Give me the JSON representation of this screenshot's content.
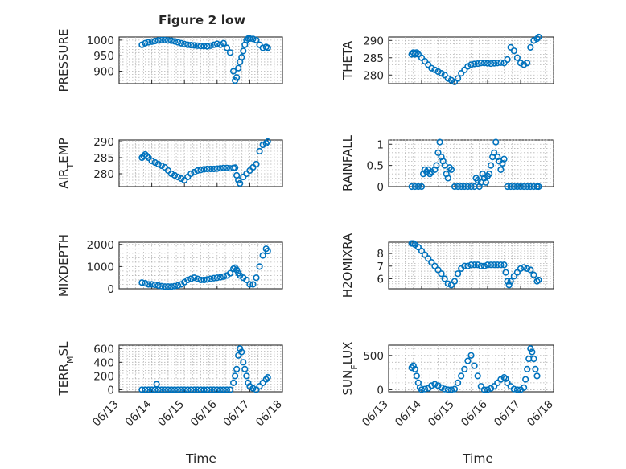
{
  "figure": {
    "title": "Figure 2 low",
    "xlabel": "Time",
    "xticklabels": [
      "06/13",
      "06/14",
      "06/15",
      "06/16",
      "06/17",
      "06/18"
    ]
  },
  "chart_data": [
    {
      "type": "scatter",
      "name": "pressure",
      "ylabel": "PRESSURE",
      "ylabel_sub": "",
      "xlim": [
        0,
        5
      ],
      "ylim": [
        860,
        1010
      ],
      "yticks": [
        900,
        950,
        1000
      ],
      "grid": true,
      "minor_grid": true,
      "x": [
        0.7,
        0.8,
        0.9,
        1.0,
        1.1,
        1.2,
        1.3,
        1.4,
        1.5,
        1.6,
        1.7,
        1.8,
        1.9,
        2.0,
        2.1,
        2.2,
        2.3,
        2.4,
        2.5,
        2.6,
        2.7,
        2.8,
        2.9,
        3.0,
        3.1,
        3.2,
        3.3,
        3.4,
        3.5,
        3.55,
        3.6,
        3.65,
        3.7,
        3.75,
        3.8,
        3.85,
        3.9,
        3.95,
        4.0,
        4.1,
        4.2,
        4.3,
        4.4,
        4.5,
        4.55
      ],
      "y": [
        985,
        990,
        993,
        995,
        997,
        999,
        1000,
        1000,
        999,
        998,
        996,
        993,
        990,
        987,
        985,
        984,
        983,
        982,
        981,
        981,
        980,
        982,
        985,
        988,
        985,
        990,
        975,
        960,
        900,
        870,
        880,
        910,
        930,
        945,
        965,
        985,
        1000,
        1005,
        1005,
        1004,
        1000,
        985,
        975,
        978,
        975
      ]
    },
    {
      "type": "scatter",
      "name": "theta",
      "ylabel": "THETA",
      "ylabel_sub": "",
      "xlim": [
        0,
        5
      ],
      "ylim": [
        277.5,
        291
      ],
      "yticks": [
        280,
        285,
        290
      ],
      "grid": true,
      "minor_grid": true,
      "x": [
        0.7,
        0.75,
        0.8,
        0.85,
        0.9,
        1.0,
        1.1,
        1.2,
        1.3,
        1.4,
        1.5,
        1.6,
        1.7,
        1.8,
        1.9,
        2.0,
        2.1,
        2.2,
        2.3,
        2.4,
        2.5,
        2.6,
        2.7,
        2.8,
        2.9,
        3.0,
        3.1,
        3.2,
        3.3,
        3.4,
        3.5,
        3.6,
        3.7,
        3.8,
        3.9,
        4.0,
        4.1,
        4.2,
        4.3,
        4.4,
        4.5,
        4.55
      ],
      "y": [
        286,
        286.5,
        286,
        286.5,
        286,
        285,
        284,
        283,
        282,
        281.5,
        281,
        280.5,
        280,
        279,
        278.5,
        278,
        279,
        280.5,
        281.5,
        282.5,
        283,
        283.2,
        283.3,
        283.5,
        283.5,
        283.4,
        283.3,
        283.4,
        283.5,
        283.6,
        283.5,
        284.5,
        288,
        287,
        285,
        283.5,
        283,
        283.5,
        288,
        290,
        290.5,
        291
      ]
    },
    {
      "type": "scatter",
      "name": "air_temp",
      "ylabel": "AIR",
      "ylabel_sub": "T",
      "ylabel_rest": "EMP",
      "xlim": [
        0,
        5
      ],
      "ylim": [
        276,
        290.5
      ],
      "yticks": [
        280,
        285,
        290
      ],
      "grid": true,
      "minor_grid": true,
      "x": [
        0.7,
        0.75,
        0.8,
        0.85,
        0.9,
        1.0,
        1.1,
        1.2,
        1.3,
        1.4,
        1.5,
        1.6,
        1.7,
        1.8,
        1.9,
        2.0,
        2.1,
        2.2,
        2.3,
        2.4,
        2.5,
        2.6,
        2.7,
        2.8,
        2.9,
        3.0,
        3.1,
        3.2,
        3.3,
        3.4,
        3.5,
        3.55,
        3.6,
        3.65,
        3.7,
        3.8,
        3.9,
        4.0,
        4.1,
        4.2,
        4.3,
        4.4,
        4.5,
        4.55
      ],
      "y": [
        285,
        285.5,
        286,
        285.5,
        285,
        284,
        283.5,
        283,
        282.5,
        282,
        281,
        280,
        279.5,
        279,
        278.5,
        278,
        279,
        280,
        280.5,
        281,
        281.2,
        281.4,
        281.5,
        281.5,
        281.5,
        281.6,
        281.7,
        281.8,
        281.8,
        281.7,
        281.8,
        281.9,
        279.5,
        278,
        277,
        279,
        280,
        281,
        282,
        283,
        287,
        289,
        289.5,
        290
      ]
    },
    {
      "type": "scatter",
      "name": "rainfall",
      "ylabel": "RAINFALL",
      "ylabel_sub": "",
      "xlim": [
        0,
        5
      ],
      "ylim": [
        0,
        1.1
      ],
      "yticks": [
        0,
        0.5,
        1
      ],
      "grid": true,
      "minor_grid": true,
      "x": [
        0.7,
        0.8,
        0.9,
        1.0,
        1.05,
        1.1,
        1.15,
        1.2,
        1.25,
        1.3,
        1.4,
        1.45,
        1.5,
        1.55,
        1.6,
        1.65,
        1.7,
        1.75,
        1.8,
        1.85,
        1.9,
        2.0,
        2.1,
        2.2,
        2.3,
        2.4,
        2.5,
        2.6,
        2.65,
        2.7,
        2.75,
        2.8,
        2.85,
        2.9,
        2.95,
        3.0,
        3.05,
        3.1,
        3.15,
        3.2,
        3.25,
        3.3,
        3.35,
        3.4,
        3.45,
        3.5,
        3.6,
        3.7,
        3.8,
        3.9,
        4.0,
        4.1,
        4.2,
        4.3,
        4.4,
        4.5,
        4.55
      ],
      "y": [
        0,
        0,
        0,
        0,
        0.3,
        0.4,
        0.35,
        0.4,
        0.3,
        0.35,
        0.4,
        0.5,
        0.8,
        1.05,
        0.7,
        0.6,
        0.5,
        0.3,
        0.2,
        0.45,
        0.4,
        0,
        0,
        0,
        0,
        0,
        0,
        0,
        0.2,
        0.15,
        0,
        0.1,
        0.3,
        0.2,
        0.1,
        0.25,
        0.3,
        0.5,
        0.7,
        0.8,
        1.05,
        0.7,
        0.6,
        0.4,
        0.55,
        0.65,
        0,
        0,
        0,
        0,
        0,
        0,
        0,
        0,
        0,
        0,
        0
      ]
    },
    {
      "type": "scatter",
      "name": "mixdepth",
      "ylabel": "MIXDEPTH",
      "ylabel_sub": "",
      "xlim": [
        0,
        5
      ],
      "ylim": [
        0,
        2100
      ],
      "yticks": [
        0,
        1000,
        2000
      ],
      "grid": true,
      "minor_grid": true,
      "x": [
        0.7,
        0.8,
        0.9,
        1.0,
        1.1,
        1.2,
        1.3,
        1.4,
        1.5,
        1.6,
        1.7,
        1.8,
        1.9,
        2.0,
        2.1,
        2.2,
        2.3,
        2.4,
        2.5,
        2.6,
        2.7,
        2.8,
        2.9,
        3.0,
        3.1,
        3.2,
        3.3,
        3.4,
        3.5,
        3.55,
        3.6,
        3.65,
        3.7,
        3.8,
        3.9,
        4.0,
        4.1,
        4.2,
        4.3,
        4.4,
        4.5,
        4.55
      ],
      "y": [
        280,
        250,
        200,
        200,
        180,
        150,
        120,
        100,
        100,
        100,
        120,
        150,
        200,
        300,
        400,
        450,
        500,
        450,
        400,
        400,
        420,
        450,
        480,
        500,
        520,
        550,
        600,
        700,
        900,
        950,
        850,
        700,
        600,
        500,
        400,
        200,
        200,
        500,
        1000,
        1500,
        1800,
        1700
      ]
    },
    {
      "type": "scatter",
      "name": "h2omixra",
      "ylabel": "H2OMIXRA",
      "ylabel_sub": "",
      "xlim": [
        0,
        5
      ],
      "ylim": [
        5.2,
        8.9
      ],
      "yticks": [
        6,
        7,
        8
      ],
      "grid": true,
      "minor_grid": true,
      "x": [
        0.7,
        0.75,
        0.8,
        0.9,
        1.0,
        1.1,
        1.2,
        1.3,
        1.4,
        1.5,
        1.6,
        1.7,
        1.8,
        1.9,
        2.0,
        2.1,
        2.2,
        2.3,
        2.4,
        2.5,
        2.6,
        2.7,
        2.8,
        2.9,
        3.0,
        3.1,
        3.2,
        3.3,
        3.4,
        3.5,
        3.55,
        3.6,
        3.65,
        3.7,
        3.8,
        3.9,
        4.0,
        4.1,
        4.2,
        4.3,
        4.4,
        4.5,
        4.55
      ],
      "y": [
        8.8,
        8.8,
        8.7,
        8.5,
        8.2,
        7.9,
        7.6,
        7.3,
        7.0,
        6.7,
        6.4,
        6.0,
        5.6,
        5.5,
        5.8,
        6.4,
        6.8,
        7.0,
        7.0,
        7.1,
        7.1,
        7.1,
        7.0,
        7.0,
        7.1,
        7.1,
        7.1,
        7.1,
        7.1,
        7.1,
        6.5,
        5.8,
        5.5,
        5.8,
        6.2,
        6.5,
        6.8,
        6.9,
        6.8,
        6.7,
        6.3,
        5.8,
        5.9
      ]
    },
    {
      "type": "scatter",
      "name": "terr_msl",
      "ylabel": "TERR",
      "ylabel_sub": "M",
      "ylabel_rest": "SL",
      "xlim": [
        0,
        5
      ],
      "ylim": [
        -30,
        650
      ],
      "yticks": [
        0,
        200,
        400,
        600
      ],
      "grid": true,
      "minor_grid": true,
      "x": [
        0.7,
        0.8,
        0.9,
        1.0,
        1.1,
        1.15,
        1.2,
        1.3,
        1.4,
        1.5,
        1.6,
        1.7,
        1.8,
        1.9,
        2.0,
        2.1,
        2.2,
        2.3,
        2.4,
        2.5,
        2.6,
        2.7,
        2.8,
        2.9,
        3.0,
        3.1,
        3.2,
        3.3,
        3.4,
        3.5,
        3.55,
        3.6,
        3.65,
        3.7,
        3.75,
        3.8,
        3.85,
        3.9,
        3.95,
        4.0,
        4.1,
        4.2,
        4.3,
        4.4,
        4.5,
        4.55
      ],
      "y": [
        0,
        0,
        0,
        0,
        0,
        80,
        0,
        0,
        0,
        0,
        0,
        0,
        0,
        0,
        0,
        0,
        0,
        0,
        0,
        0,
        0,
        0,
        0,
        0,
        0,
        0,
        0,
        0,
        0,
        100,
        200,
        300,
        500,
        600,
        550,
        400,
        300,
        200,
        100,
        50,
        20,
        0,
        50,
        100,
        150,
        180
      ]
    },
    {
      "type": "scatter",
      "name": "sun_flux",
      "ylabel": "SUN",
      "ylabel_sub": "F",
      "ylabel_rest": "LUX",
      "xlim": [
        0,
        5
      ],
      "ylim": [
        -30,
        650
      ],
      "yticks": [
        0,
        500
      ],
      "grid": true,
      "minor_grid": true,
      "x": [
        0.7,
        0.75,
        0.8,
        0.85,
        0.9,
        0.95,
        1.0,
        1.1,
        1.2,
        1.3,
        1.4,
        1.5,
        1.6,
        1.7,
        1.8,
        1.9,
        2.0,
        2.1,
        2.2,
        2.3,
        2.4,
        2.5,
        2.6,
        2.7,
        2.8,
        2.9,
        3.0,
        3.1,
        3.2,
        3.3,
        3.4,
        3.5,
        3.55,
        3.6,
        3.7,
        3.8,
        3.9,
        4.0,
        4.1,
        4.15,
        4.2,
        4.25,
        4.3,
        4.35,
        4.4,
        4.45,
        4.5
      ],
      "y": [
        320,
        350,
        300,
        200,
        100,
        30,
        0,
        10,
        20,
        60,
        80,
        60,
        30,
        10,
        0,
        0,
        10,
        100,
        200,
        300,
        420,
        500,
        350,
        200,
        50,
        0,
        0,
        20,
        50,
        100,
        150,
        180,
        160,
        100,
        50,
        10,
        0,
        0,
        30,
        150,
        300,
        450,
        600,
        550,
        450,
        300,
        200
      ]
    }
  ]
}
